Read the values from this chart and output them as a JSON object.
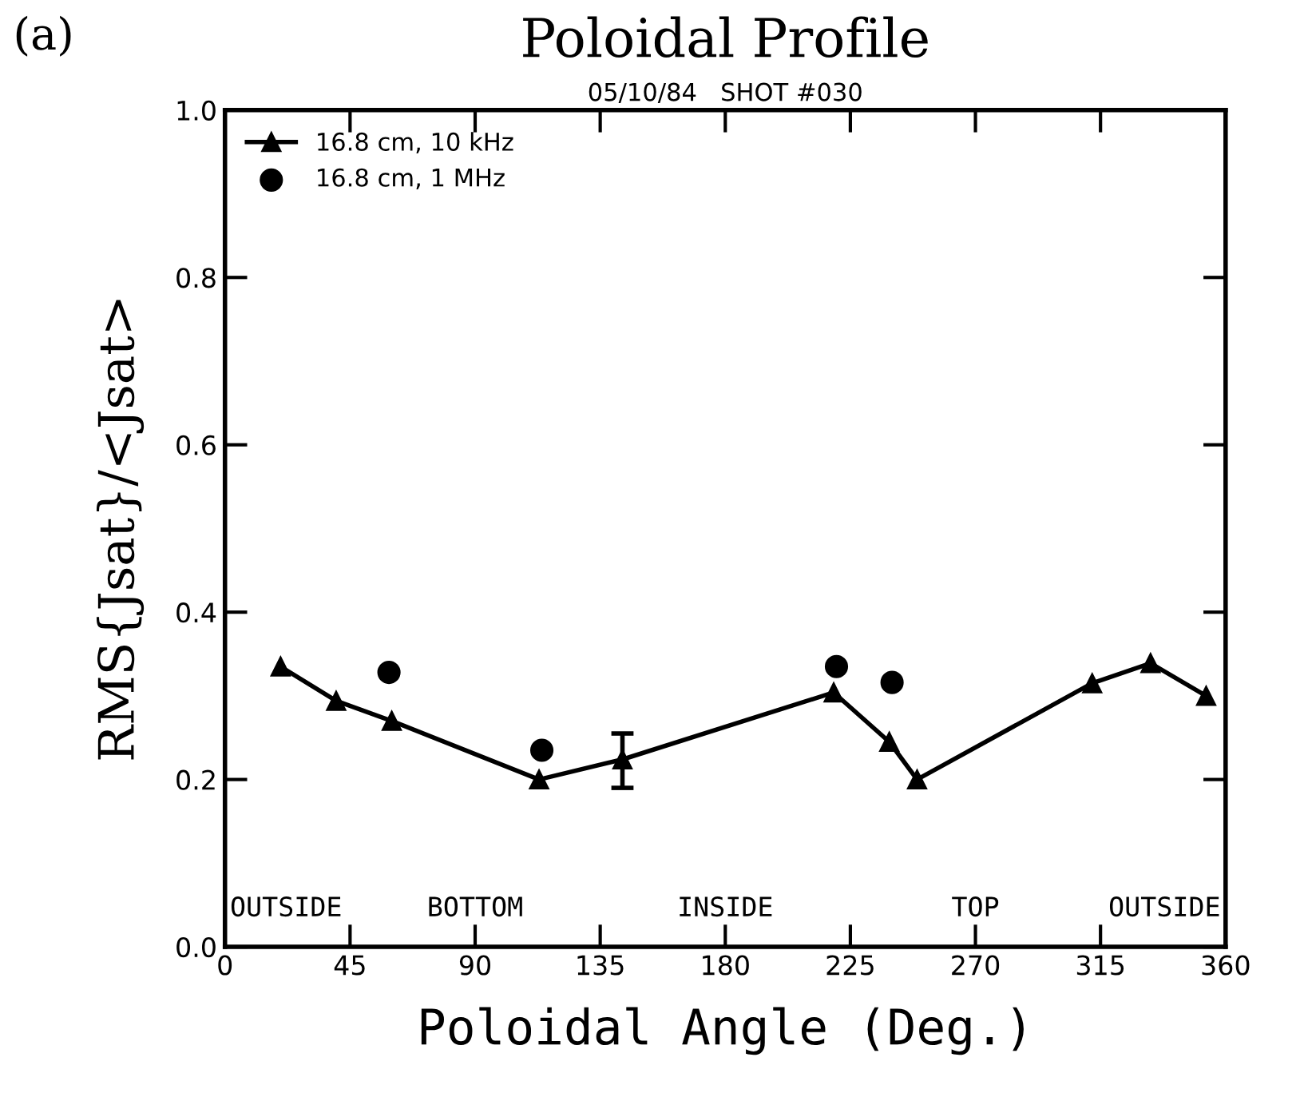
{
  "chart_data": {
    "type": "line",
    "title": "Poloidal Profile",
    "subtitle": "05/10/84   SHOT #030",
    "xlabel": "Poloidal Angle (Deg.)",
    "ylabel": "RMS{Jsat}/<Jsat>",
    "annotations": [
      "(a)",
      "OUTSIDE",
      "BOTTOM",
      "INSIDE",
      "TOP",
      "OUTSIDE"
    ],
    "series": [
      {
        "name": "16.8 cm, 10 kHz",
        "color": "#000000",
        "marker": "triangle",
        "x": [
          20,
          40,
          60,
          113,
          143,
          219,
          239,
          249,
          312,
          333,
          353
        ],
        "values": [
          0.335,
          0.294,
          0.27,
          0.2,
          0.224,
          0.304,
          0.245,
          0.2,
          0.315,
          0.339,
          0.3
        ],
        "errors": [
          null,
          null,
          null,
          null,
          [
            0.19,
            0.255
          ],
          null,
          null,
          null,
          null,
          null,
          null
        ]
      },
      {
        "name": "16.8 cm, 1 MHz",
        "type": "scatter",
        "color": "#000000",
        "marker": "circle",
        "x": [
          59,
          114,
          220,
          240
        ],
        "values": [
          0.328,
          0.235,
          0.335,
          0.316
        ]
      }
    ],
    "xlim": [
      0,
      360
    ],
    "xticks": [
      0,
      45,
      90,
      135,
      180,
      225,
      270,
      315,
      360
    ],
    "ylim": [
      0,
      1.0
    ],
    "yticks": [
      {
        "value": 0,
        "label": "0.0"
      },
      {
        "value": 0.2,
        "label": "0.2"
      },
      {
        "value": 0.4,
        "label": "0.4"
      },
      {
        "value": 0.6,
        "label": "0.6"
      },
      {
        "value": 0.8,
        "label": "0.8"
      },
      {
        "value": 1.0,
        "label": "1.0"
      }
    ],
    "grid": false,
    "legend": "top left"
  }
}
